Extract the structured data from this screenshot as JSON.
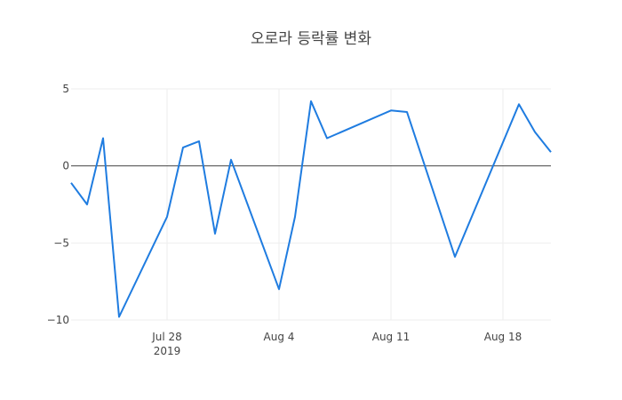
{
  "chart_data": {
    "type": "line",
    "title": "오로라 등락률 변화",
    "xlabel": "",
    "ylabel": "",
    "x_range": [
      "2019-07-22",
      "2019-08-21"
    ],
    "ylim": [
      -10.5,
      5
    ],
    "grid": true,
    "zero_line": true,
    "line_color": "#1f7ce0",
    "x_ticks": [
      {
        "date": "2019-07-28",
        "label": "Jul 28",
        "sublabel": "2019"
      },
      {
        "date": "2019-08-04",
        "label": "Aug 4"
      },
      {
        "date": "2019-08-11",
        "label": "Aug 11"
      },
      {
        "date": "2019-08-18",
        "label": "Aug 18"
      }
    ],
    "y_ticks": [
      {
        "value": 5,
        "label": "5"
      },
      {
        "value": 0,
        "label": "0"
      },
      {
        "value": -5,
        "label": "−5"
      },
      {
        "value": -10,
        "label": "−10"
      }
    ],
    "series": [
      {
        "x": [
          "2019-07-22",
          "2019-07-23",
          "2019-07-24",
          "2019-07-25",
          "2019-07-28",
          "2019-07-29",
          "2019-07-30",
          "2019-07-31",
          "2019-08-01",
          "2019-08-04",
          "2019-08-05",
          "2019-08-06",
          "2019-08-07",
          "2019-08-11",
          "2019-08-12",
          "2019-08-15",
          "2019-08-19",
          "2019-08-20",
          "2019-08-21"
        ],
        "y": [
          -1.1,
          -2.5,
          1.8,
          -9.8,
          -3.3,
          1.2,
          1.6,
          -4.4,
          0.4,
          -8.0,
          -3.3,
          4.2,
          1.8,
          3.6,
          3.5,
          -5.9,
          4.0,
          2.2,
          0.9
        ]
      }
    ]
  }
}
